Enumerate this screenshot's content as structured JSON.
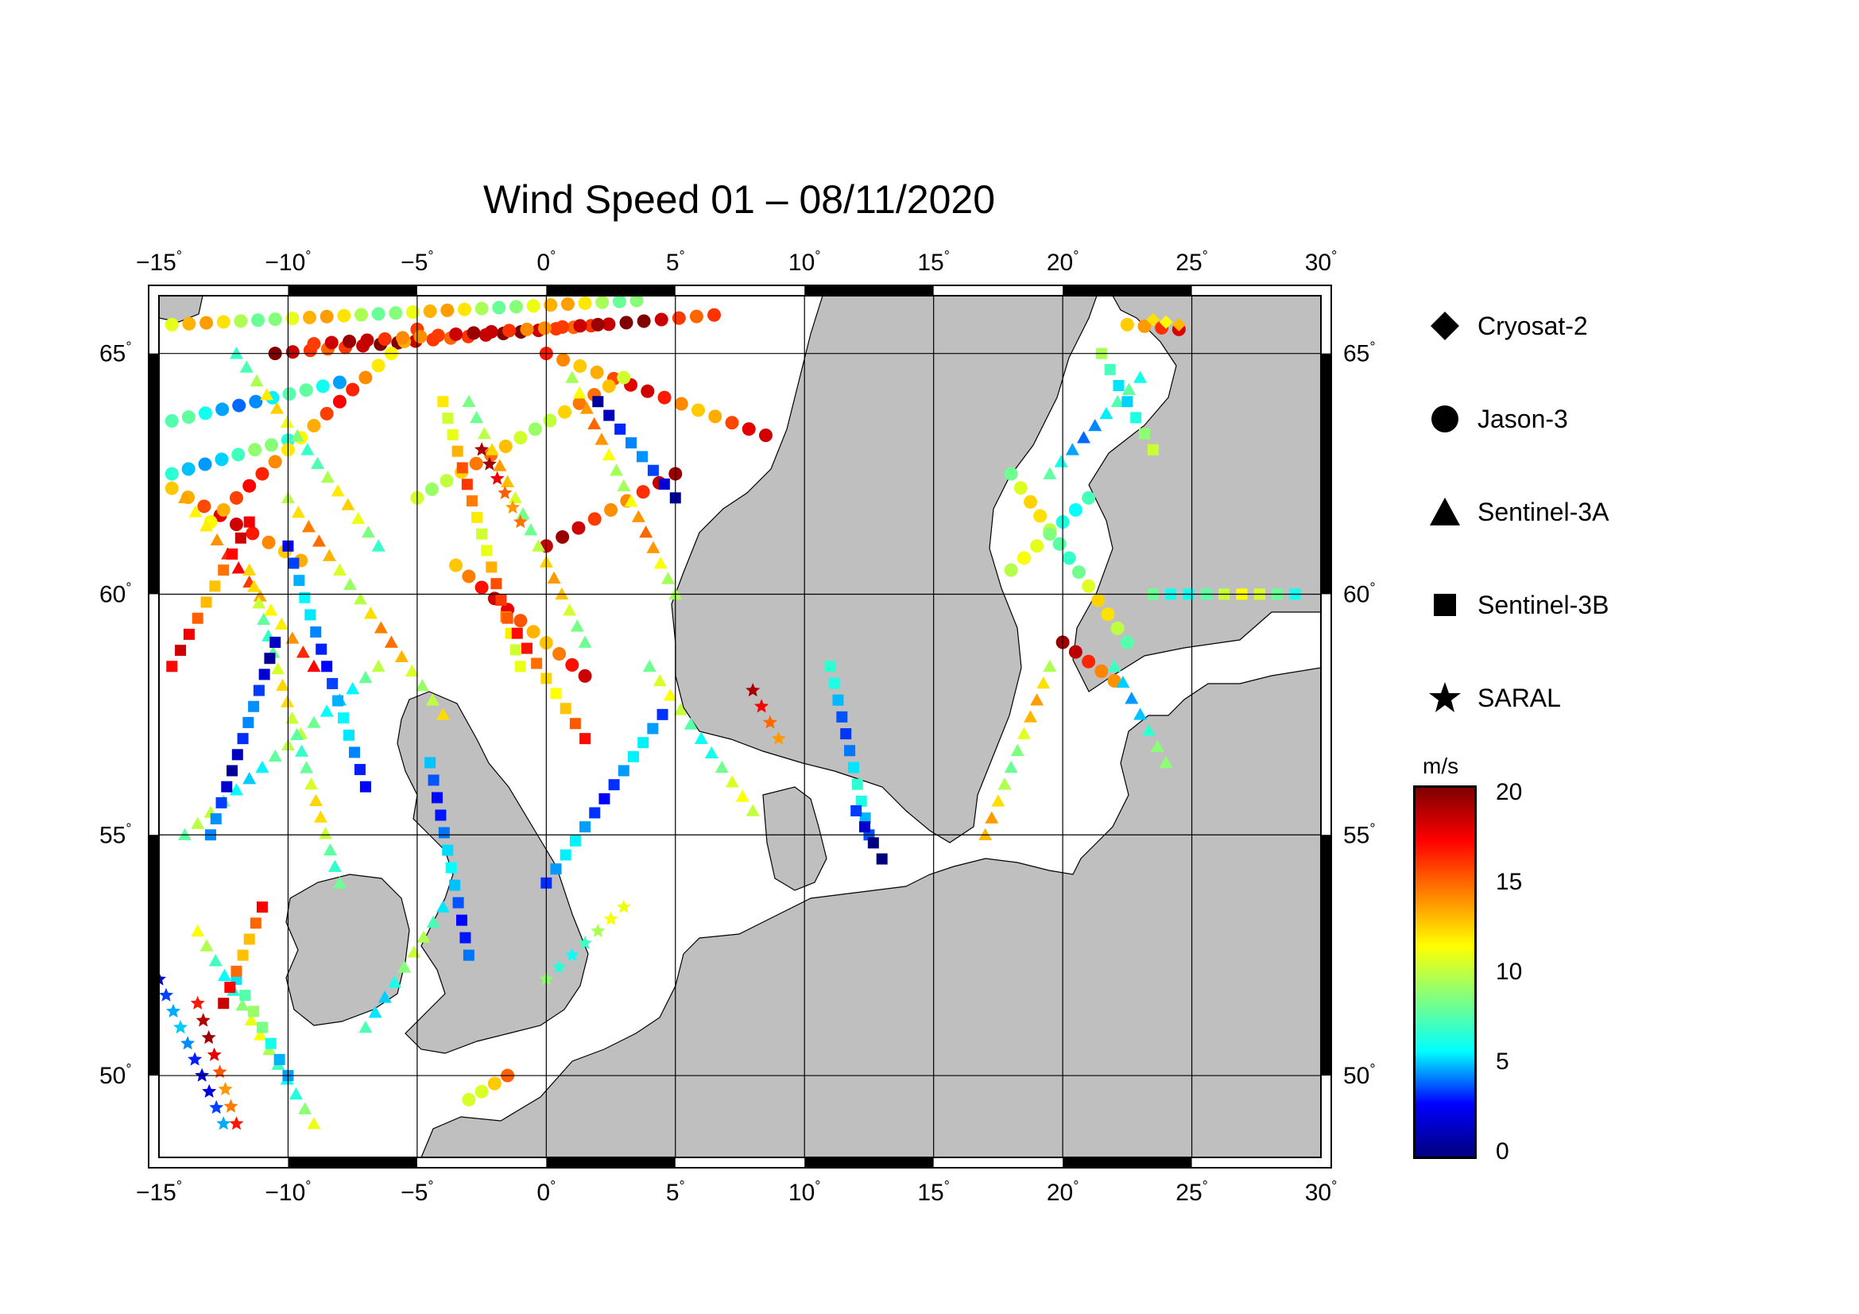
{
  "title": "Wind Speed 01 – 08/11/2020",
  "lon_ticks": [
    "−15",
    "−10",
    "−5",
    "0",
    "5",
    "10",
    "15",
    "20",
    "25",
    "30"
  ],
  "lat_ticks": [
    "65",
    "60",
    "55",
    "50"
  ],
  "degree_symbol": "°",
  "legend": [
    {
      "label": "Cryosat-2",
      "symbol": "diamond-icon"
    },
    {
      "label": "Jason-3",
      "symbol": "circle-icon"
    },
    {
      "label": "Sentinel-3A",
      "symbol": "triangle-icon"
    },
    {
      "label": "Sentinel-3B",
      "symbol": "square-icon"
    },
    {
      "label": "SARAL",
      "symbol": "star-icon"
    }
  ],
  "colorbar": {
    "unit": "m/s",
    "ticks": [
      "20",
      "15",
      "10",
      "5",
      "0"
    ],
    "min": 0,
    "max": 20,
    "colors": [
      "#00007f",
      "#0000ff",
      "#00ffff",
      "#80ff80",
      "#ffff00",
      "#ff8000",
      "#ff0000",
      "#7f0000"
    ]
  },
  "colors": {
    "land": "#bfbfbf",
    "sea": "#ffffff",
    "frame": "#000000"
  },
  "chart_data": {
    "type": "scatter",
    "title": "Wind Speed 01 – 08/11/2020",
    "xlim": [
      -15,
      30
    ],
    "ylim": [
      48.3,
      66.2
    ],
    "value_unit": "m/s",
    "value_range": [
      0,
      20
    ],
    "tracks": [
      {
        "satellite": "Jason-3",
        "from": [
          -14.5,
          65.6
        ],
        "to": [
          3.5,
          66.1
        ],
        "value": 12
      },
      {
        "satellite": "Jason-3",
        "from": [
          -14.5,
          63.6
        ],
        "to": [
          -8.0,
          64.4
        ],
        "value": 7
      },
      {
        "satellite": "Jason-3",
        "from": [
          -10.5,
          65.0
        ],
        "to": [
          6.5,
          65.8
        ],
        "value": 18
      },
      {
        "satellite": "Jason-3",
        "from": [
          -14.5,
          62.5
        ],
        "to": [
          -10.0,
          63.2
        ],
        "value": 8
      },
      {
        "satellite": "Jason-3",
        "from": [
          -9.5,
          60.7
        ],
        "to": [
          -14.5,
          62.2
        ],
        "value": 16
      },
      {
        "satellite": "Jason-3",
        "from": [
          -13.0,
          61.5
        ],
        "to": [
          -5.0,
          65.5
        ],
        "value": 15
      },
      {
        "satellite": "Jason-3",
        "from": [
          -9.0,
          65.2
        ],
        "to": [
          2.0,
          65.6
        ],
        "value": 17
      },
      {
        "satellite": "Jason-3",
        "from": [
          0.0,
          61.0
        ],
        "to": [
          5.0,
          62.5
        ],
        "value": 17
      },
      {
        "satellite": "Jason-3",
        "from": [
          1.5,
          58.3
        ],
        "to": [
          -3.5,
          60.6
        ],
        "value": 16
      },
      {
        "satellite": "Jason-3",
        "from": [
          0.0,
          65.0
        ],
        "to": [
          8.5,
          63.3
        ],
        "value": 16
      },
      {
        "satellite": "Jason-3",
        "from": [
          -5.0,
          62.0
        ],
        "to": [
          3.0,
          64.5
        ],
        "value": 13
      },
      {
        "satellite": "Jason-3",
        "from": [
          22.5,
          65.6
        ],
        "to": [
          24.5,
          65.5
        ],
        "value": 16
      },
      {
        "satellite": "Jason-3",
        "from": [
          18.0,
          62.5
        ],
        "to": [
          22.5,
          59.0
        ],
        "value": 11
      },
      {
        "satellite": "Jason-3",
        "from": [
          18.0,
          60.5
        ],
        "to": [
          21.0,
          62.0
        ],
        "value": 10
      },
      {
        "satellite": "Jason-3",
        "from": [
          20.0,
          59.0
        ],
        "to": [
          22.0,
          58.2
        ],
        "value": 17
      },
      {
        "satellite": "Jason-3",
        "from": [
          -1.5,
          50.0
        ],
        "to": [
          -3.0,
          49.5
        ],
        "value": 14
      },
      {
        "satellite": "Sentinel-3A",
        "from": [
          -14.0,
          62.0
        ],
        "to": [
          -9.0,
          58.5
        ],
        "value": 15
      },
      {
        "satellite": "Sentinel-3A",
        "from": [
          -12.0,
          65.0
        ],
        "to": [
          -6.5,
          61.0
        ],
        "value": 11
      },
      {
        "satellite": "Sentinel-3A",
        "from": [
          -10.0,
          62.0
        ],
        "to": [
          -4.0,
          57.5
        ],
        "value": 13
      },
      {
        "satellite": "Sentinel-3A",
        "from": [
          -14.0,
          55.0
        ],
        "to": [
          -6.5,
          58.5
        ],
        "value": 9
      },
      {
        "satellite": "Sentinel-3A",
        "from": [
          -11.5,
          60.5
        ],
        "to": [
          -8.0,
          54.0
        ],
        "value": 11
      },
      {
        "satellite": "Sentinel-3A",
        "from": [
          -9.0,
          49.0
        ],
        "to": [
          -13.5,
          53.0
        ],
        "value": 10
      },
      {
        "satellite": "Sentinel-3A",
        "from": [
          -7.0,
          51.0
        ],
        "to": [
          -4.0,
          53.5
        ],
        "value": 9
      },
      {
        "satellite": "Sentinel-3A",
        "from": [
          -3.0,
          64.0
        ],
        "to": [
          1.5,
          59.0
        ],
        "value": 12
      },
      {
        "satellite": "Sentinel-3A",
        "from": [
          1.0,
          64.5
        ],
        "to": [
          5.0,
          60.0
        ],
        "value": 13
      },
      {
        "satellite": "Sentinel-3A",
        "from": [
          4.0,
          58.5
        ],
        "to": [
          8.0,
          55.5
        ],
        "value": 10
      },
      {
        "satellite": "Sentinel-3A",
        "from": [
          17.0,
          55.0
        ],
        "to": [
          19.5,
          58.5
        ],
        "value": 12
      },
      {
        "satellite": "Sentinel-3A",
        "from": [
          19.5,
          62.5
        ],
        "to": [
          23.0,
          64.5
        ],
        "value": 7
      },
      {
        "satellite": "Sentinel-3A",
        "from": [
          22.0,
          58.5
        ],
        "to": [
          24.0,
          56.5
        ],
        "value": 8
      },
      {
        "satellite": "Sentinel-3B",
        "from": [
          -10.5,
          59.0
        ],
        "to": [
          -13.0,
          55.0
        ],
        "value": 3
      },
      {
        "satellite": "Sentinel-3B",
        "from": [
          -10.0,
          61.0
        ],
        "to": [
          -7.0,
          56.0
        ],
        "value": 5
      },
      {
        "satellite": "Sentinel-3B",
        "from": [
          -12.0,
          52.0
        ],
        "to": [
          -10.0,
          50.0
        ],
        "value": 8
      },
      {
        "satellite": "Sentinel-3B",
        "from": [
          -14.5,
          58.5
        ],
        "to": [
          -11.5,
          61.5
        ],
        "value": 16
      },
      {
        "satellite": "Sentinel-3B",
        "from": [
          -12.5,
          51.5
        ],
        "to": [
          -11.0,
          53.5
        ],
        "value": 16
      },
      {
        "satellite": "Sentinel-3B",
        "from": [
          -4.5,
          56.5
        ],
        "to": [
          -3.0,
          52.5
        ],
        "value": 5
      },
      {
        "satellite": "Sentinel-3B",
        "from": [
          -4.0,
          64.0
        ],
        "to": [
          -1.0,
          58.5
        ],
        "value": 14
      },
      {
        "satellite": "Sentinel-3B",
        "from": [
          2.0,
          64.0
        ],
        "to": [
          5.0,
          62.0
        ],
        "value": 3
      },
      {
        "satellite": "Sentinel-3B",
        "from": [
          0.0,
          54.0
        ],
        "to": [
          4.5,
          57.5
        ],
        "value": 5
      },
      {
        "satellite": "Sentinel-3B",
        "from": [
          -1.5,
          59.5
        ],
        "to": [
          1.5,
          57.0
        ],
        "value": 15
      },
      {
        "satellite": "Sentinel-3B",
        "from": [
          11.0,
          58.5
        ],
        "to": [
          12.5,
          55.0
        ],
        "value": 6
      },
      {
        "satellite": "Sentinel-3B",
        "from": [
          21.5,
          65.0
        ],
        "to": [
          23.5,
          63.0
        ],
        "value": 9
      },
      {
        "satellite": "Sentinel-3B",
        "from": [
          23.5,
          60.0
        ],
        "to": [
          29.0,
          60.0
        ],
        "value": 10
      },
      {
        "satellite": "Sentinel-3B",
        "from": [
          13.0,
          54.5
        ],
        "to": [
          12.0,
          55.5
        ],
        "value": 2
      },
      {
        "satellite": "SARAL",
        "from": [
          -15.0,
          52.0
        ],
        "to": [
          -12.5,
          49.0
        ],
        "value": 4
      },
      {
        "satellite": "SARAL",
        "from": [
          -13.5,
          51.5
        ],
        "to": [
          -12.0,
          49.0
        ],
        "value": 17
      },
      {
        "satellite": "SARAL",
        "from": [
          -2.5,
          63.0
        ],
        "to": [
          -1.0,
          61.5
        ],
        "value": 17
      },
      {
        "satellite": "SARAL",
        "from": [
          8.0,
          58.0
        ],
        "to": [
          9.0,
          57.0
        ],
        "value": 17
      },
      {
        "satellite": "SARAL",
        "from": [
          0.0,
          52.0
        ],
        "to": [
          3.0,
          53.5
        ],
        "value": 10
      },
      {
        "satellite": "Cryosat-2",
        "from": [
          23.5,
          65.7
        ],
        "to": [
          24.5,
          65.6
        ],
        "value": 15
      }
    ]
  }
}
